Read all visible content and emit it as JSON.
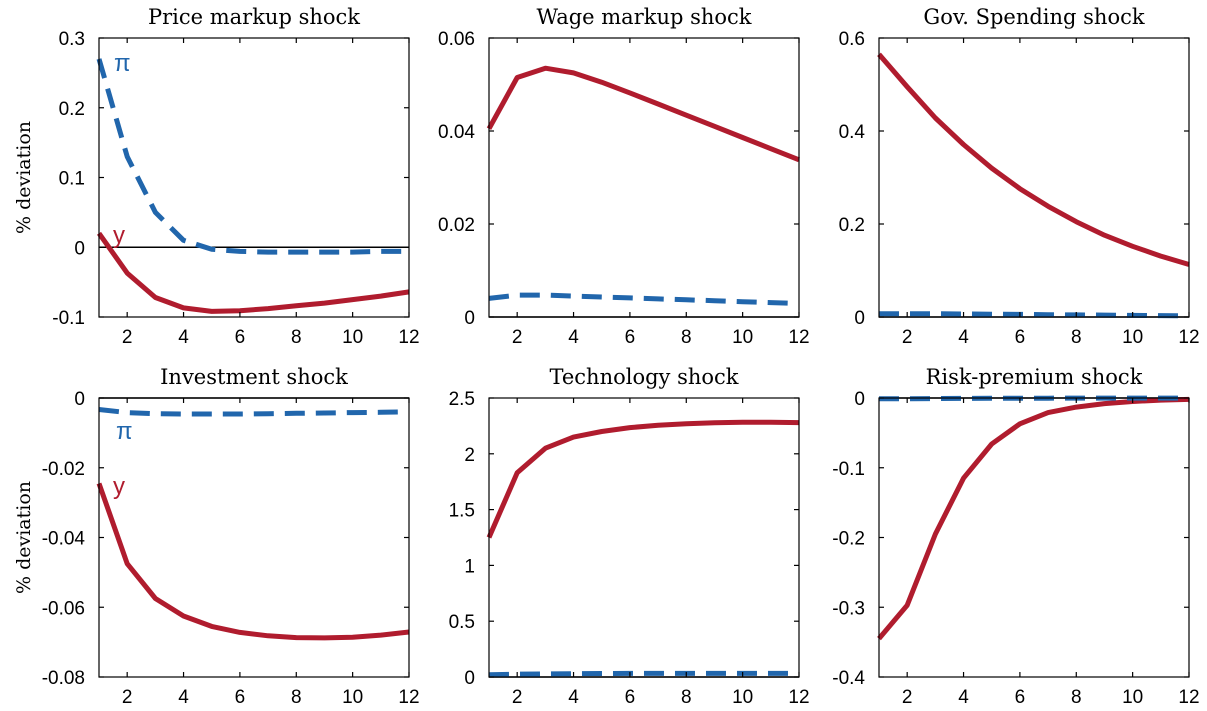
{
  "ylabel": "% deviation",
  "legend_labels": {
    "output": "y",
    "inflation": "π"
  },
  "colors": {
    "output": "#b01c2e",
    "inflation": "#2166ac",
    "zero_line": "#000000"
  },
  "chart_data": [
    {
      "type": "line",
      "title": "Price markup shock",
      "xlabel": "",
      "ylabel": "% deviation",
      "xlim": [
        1,
        12
      ],
      "ylim": [
        -0.1,
        0.3
      ],
      "xticks": [
        2,
        4,
        6,
        8,
        10,
        12
      ],
      "yticks": [
        -0.1,
        0,
        0.1,
        0.2,
        0.3
      ],
      "ytick_labels": [
        "-0.1",
        "0",
        "0.1",
        "0.2",
        "0.3"
      ],
      "x": [
        1,
        2,
        3,
        4,
        5,
        6,
        7,
        8,
        9,
        10,
        11,
        12
      ],
      "series": [
        {
          "name": "y",
          "style": "solid",
          "values": [
            0.02,
            -0.037,
            -0.072,
            -0.087,
            -0.092,
            -0.091,
            -0.088,
            -0.084,
            -0.08,
            -0.075,
            -0.07,
            -0.064
          ]
        },
        {
          "name": "π",
          "style": "dashed",
          "values": [
            0.27,
            0.13,
            0.05,
            0.01,
            -0.003,
            -0.006,
            -0.007,
            -0.007,
            -0.007,
            -0.007,
            -0.006,
            -0.006
          ]
        }
      ],
      "annotations": [
        {
          "text": "π",
          "series": "π"
        },
        {
          "text": "y",
          "series": "y"
        }
      ]
    },
    {
      "type": "line",
      "title": "Wage markup shock",
      "xlabel": "",
      "ylabel": "",
      "xlim": [
        1,
        12
      ],
      "ylim": [
        0,
        0.06
      ],
      "xticks": [
        2,
        4,
        6,
        8,
        10,
        12
      ],
      "yticks": [
        0,
        0.02,
        0.04,
        0.06
      ],
      "ytick_labels": [
        "0",
        "0.02",
        "0.04",
        "0.06"
      ],
      "x": [
        1,
        2,
        3,
        4,
        5,
        6,
        7,
        8,
        9,
        10,
        11,
        12
      ],
      "series": [
        {
          "name": "y",
          "style": "solid",
          "values": [
            0.0405,
            0.0515,
            0.0535,
            0.0525,
            0.0505,
            0.0482,
            0.0458,
            0.0434,
            0.041,
            0.0386,
            0.0362,
            0.0338
          ]
        },
        {
          "name": "π",
          "style": "dashed",
          "values": [
            0.004,
            0.0047,
            0.0047,
            0.0045,
            0.0043,
            0.0041,
            0.0039,
            0.0037,
            0.0035,
            0.0033,
            0.0031,
            0.0029
          ]
        }
      ]
    },
    {
      "type": "line",
      "title": "Gov. Spending shock",
      "xlabel": "",
      "ylabel": "",
      "xlim": [
        1,
        12
      ],
      "ylim": [
        0,
        0.6
      ],
      "xticks": [
        2,
        4,
        6,
        8,
        10,
        12
      ],
      "yticks": [
        0,
        0.2,
        0.4,
        0.6
      ],
      "ytick_labels": [
        "0",
        "0.2",
        "0.4",
        "0.6"
      ],
      "x": [
        1,
        2,
        3,
        4,
        5,
        6,
        7,
        8,
        9,
        10,
        11,
        12
      ],
      "series": [
        {
          "name": "y",
          "style": "solid",
          "values": [
            0.565,
            0.495,
            0.428,
            0.371,
            0.32,
            0.276,
            0.238,
            0.205,
            0.176,
            0.152,
            0.131,
            0.113
          ]
        },
        {
          "name": "π",
          "style": "dashed",
          "values": [
            0.007,
            0.007,
            0.007,
            0.0065,
            0.006,
            0.0055,
            0.005,
            0.0045,
            0.004,
            0.0035,
            0.003,
            0.0025
          ]
        }
      ]
    },
    {
      "type": "line",
      "title": "Investment shock",
      "xlabel": "",
      "ylabel": "% deviation",
      "xlim": [
        1,
        12
      ],
      "ylim": [
        -0.08,
        0
      ],
      "xticks": [
        2,
        4,
        6,
        8,
        10,
        12
      ],
      "yticks": [
        -0.08,
        -0.06,
        -0.04,
        -0.02,
        0
      ],
      "ytick_labels": [
        "-0.08",
        "-0.06",
        "-0.04",
        "-0.02",
        "0"
      ],
      "x": [
        1,
        2,
        3,
        4,
        5,
        6,
        7,
        8,
        9,
        10,
        11,
        12
      ],
      "series": [
        {
          "name": "y",
          "style": "solid",
          "values": [
            -0.0245,
            -0.0475,
            -0.0575,
            -0.0625,
            -0.0655,
            -0.0672,
            -0.0682,
            -0.0687,
            -0.0688,
            -0.0686,
            -0.068,
            -0.0671
          ]
        },
        {
          "name": "π",
          "style": "dashed",
          "values": [
            -0.0033,
            -0.0042,
            -0.0045,
            -0.0046,
            -0.0046,
            -0.0046,
            -0.0045,
            -0.0044,
            -0.0043,
            -0.0042,
            -0.0041,
            -0.004
          ]
        }
      ],
      "annotations": [
        {
          "text": "π",
          "series": "π"
        },
        {
          "text": "y",
          "series": "y"
        }
      ]
    },
    {
      "type": "line",
      "title": "Technology shock",
      "xlabel": "",
      "ylabel": "",
      "xlim": [
        1,
        12
      ],
      "ylim": [
        0,
        2.5
      ],
      "xticks": [
        2,
        4,
        6,
        8,
        10,
        12
      ],
      "yticks": [
        0,
        0.5,
        1,
        1.5,
        2,
        2.5
      ],
      "ytick_labels": [
        "0",
        "0.5",
        "1",
        "1.5",
        "2",
        "2.5"
      ],
      "x": [
        1,
        2,
        3,
        4,
        5,
        6,
        7,
        8,
        9,
        10,
        11,
        12
      ],
      "series": [
        {
          "name": "y",
          "style": "solid",
          "values": [
            1.25,
            1.83,
            2.05,
            2.15,
            2.2,
            2.235,
            2.255,
            2.27,
            2.278,
            2.282,
            2.283,
            2.28
          ]
        },
        {
          "name": "π",
          "style": "dashed",
          "values": [
            0.02,
            0.025,
            0.028,
            0.03,
            0.031,
            0.032,
            0.032,
            0.032,
            0.032,
            0.032,
            0.032,
            0.032
          ]
        }
      ]
    },
    {
      "type": "line",
      "title": "Risk-premium shock",
      "xlabel": "",
      "ylabel": "",
      "xlim": [
        1,
        12
      ],
      "ylim": [
        -0.4,
        0
      ],
      "xticks": [
        2,
        4,
        6,
        8,
        10,
        12
      ],
      "yticks": [
        -0.4,
        -0.3,
        -0.2,
        -0.1,
        0
      ],
      "ytick_labels": [
        "-0.4",
        "-0.3",
        "-0.2",
        "-0.1",
        "0"
      ],
      "x": [
        1,
        2,
        3,
        4,
        5,
        6,
        7,
        8,
        9,
        10,
        11,
        12
      ],
      "series": [
        {
          "name": "y",
          "style": "solid",
          "values": [
            -0.345,
            -0.297,
            -0.195,
            -0.115,
            -0.066,
            -0.037,
            -0.021,
            -0.013,
            -0.008,
            -0.005,
            -0.003,
            -0.002
          ]
        },
        {
          "name": "π",
          "style": "dashed",
          "values": [
            -0.001,
            -0.001,
            -0.0008,
            -0.0006,
            -0.0005,
            -0.0004,
            -0.0003,
            -0.0002,
            -0.0002,
            -0.0001,
            -0.0001,
            -0.0001
          ]
        }
      ]
    }
  ]
}
